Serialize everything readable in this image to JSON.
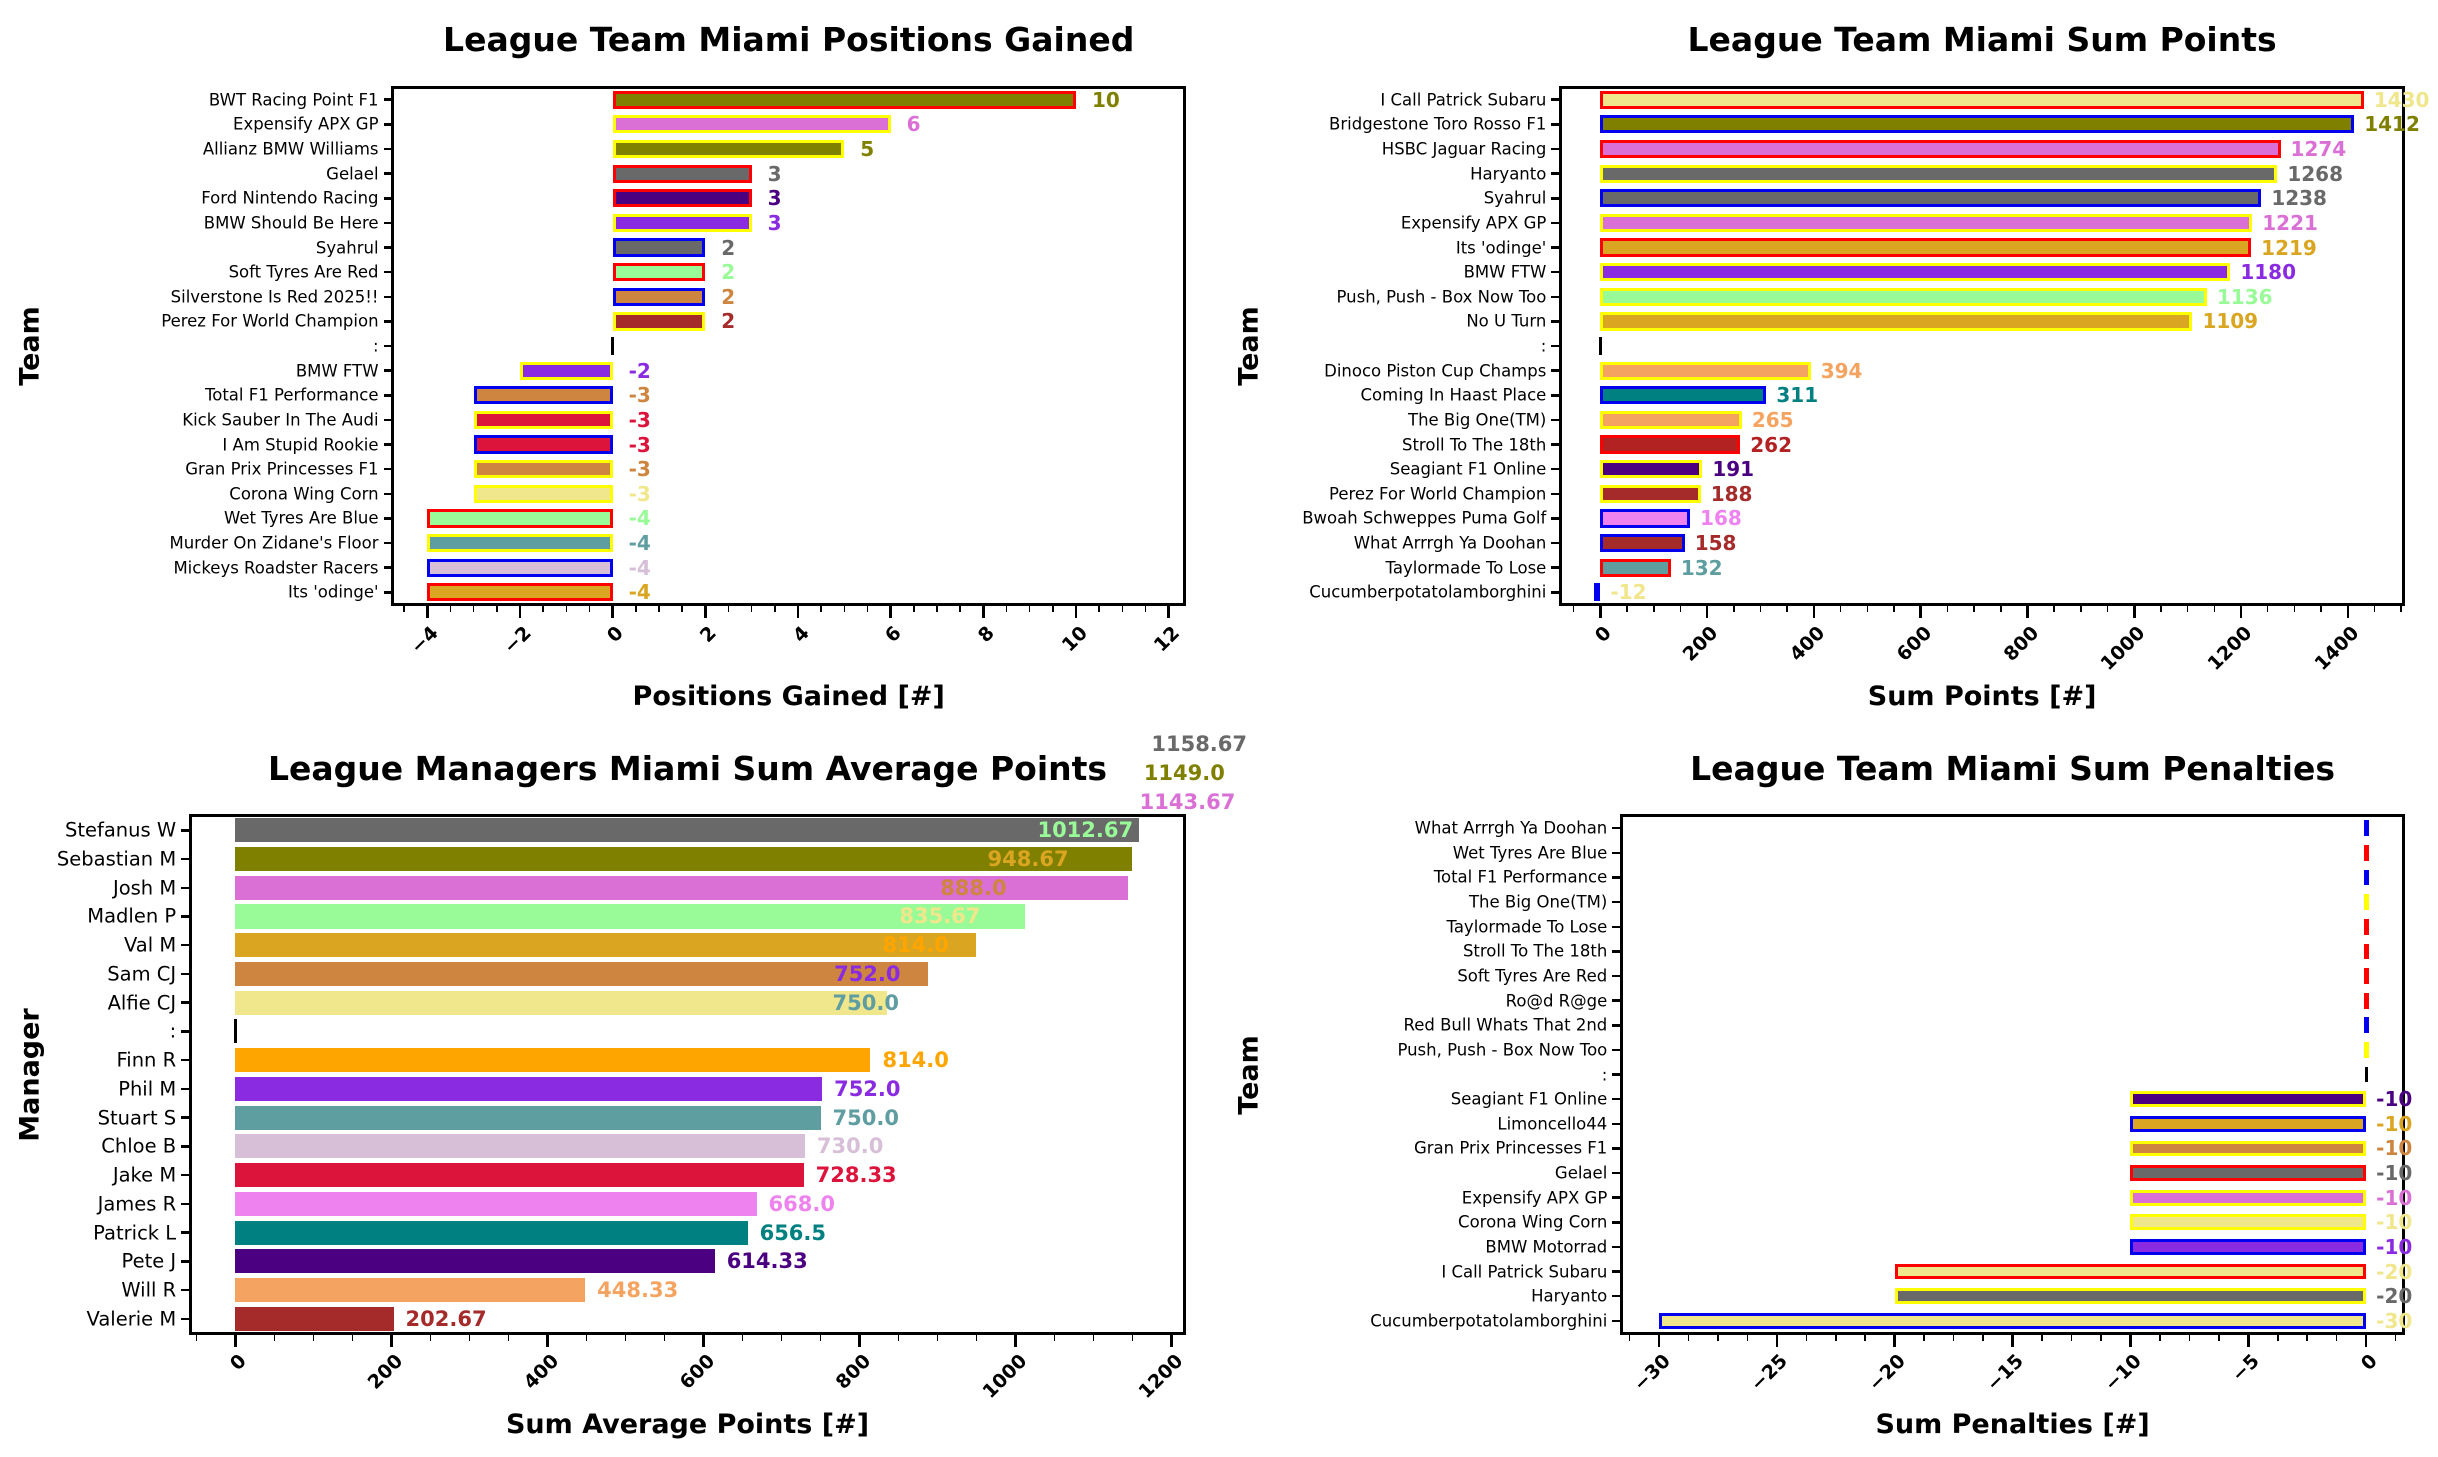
{
  "figure": {
    "background": "#ffffff"
  },
  "chart_data": [
    {
      "type": "bar",
      "orientation": "horizontal",
      "title": "League Team Miami Positions Gained",
      "xlabel": "Positions Gained [#]",
      "ylabel": "Team",
      "xlim": [
        -4.75,
        12.35
      ],
      "xticks": [
        -4,
        -2,
        0,
        2,
        4,
        6,
        8,
        10,
        12
      ],
      "minor_step": 0.5,
      "grid": false,
      "rows": [
        {
          "label": "BWT Racing Point F1",
          "value": 10,
          "fill": "#808000",
          "edge": "#FF0000",
          "vtext": "10",
          "vcolor": "#808000",
          "vx": 10
        },
        {
          "label": "Expensify APX GP",
          "value": 6,
          "fill": "#DA70D6",
          "edge": "#FFFF00",
          "vtext": "6",
          "vcolor": "#DA70D6",
          "vx": 6
        },
        {
          "label": "Allianz BMW Williams",
          "value": 5,
          "fill": "#808000",
          "edge": "#FFFF00",
          "vtext": "5",
          "vcolor": "#808000",
          "vx": 5
        },
        {
          "label": "Gelael",
          "value": 3,
          "fill": "#696969",
          "edge": "#FF0000",
          "vtext": "3",
          "vcolor": "#696969",
          "vx": 3
        },
        {
          "label": "Ford Nintendo Racing",
          "value": 3,
          "fill": "#4B0082",
          "edge": "#FF0000",
          "vtext": "3",
          "vcolor": "#4B0082",
          "vx": 3
        },
        {
          "label": "BMW Should Be Here",
          "value": 3,
          "fill": "#8A2BE2",
          "edge": "#FFFF00",
          "vtext": "3",
          "vcolor": "#8A2BE2",
          "vx": 3
        },
        {
          "label": "Syahrul",
          "value": 2,
          "fill": "#696969",
          "edge": "#0000EE",
          "vtext": "2",
          "vcolor": "#696969",
          "vx": 2
        },
        {
          "label": "Soft Tyres Are Red",
          "value": 2,
          "fill": "#98FB98",
          "edge": "#FF0000",
          "vtext": "2",
          "vcolor": "#98FB98",
          "vx": 2
        },
        {
          "label": "Silverstone Is Red 2025!!",
          "value": 2,
          "fill": "#CD853F",
          "edge": "#0000EE",
          "vtext": "2",
          "vcolor": "#CD853F",
          "vx": 2
        },
        {
          "label": "Perez For World Champion",
          "value": 2,
          "fill": "#A52A2A",
          "edge": "#FFFF00",
          "vtext": "2",
          "vcolor": "#A52A2A",
          "vx": 2
        },
        {
          "label": ":",
          "value": 0,
          "fill": null,
          "edge": null,
          "vtext": "",
          "vcolor": null,
          "vx": 0,
          "separator": true
        },
        {
          "label": "BMW FTW",
          "value": -2,
          "fill": "#8A2BE2",
          "edge": "#FFFF00",
          "vtext": "-2",
          "vcolor": "#8A2BE2",
          "vx": 0
        },
        {
          "label": "Total F1 Performance",
          "value": -3,
          "fill": "#CD853F",
          "edge": "#0000EE",
          "vtext": "-3",
          "vcolor": "#CD853F",
          "vx": 0
        },
        {
          "label": "Kick Sauber In The Audi",
          "value": -3,
          "fill": "#DC143C",
          "edge": "#FFFF00",
          "vtext": "-3",
          "vcolor": "#DC143C",
          "vx": 0
        },
        {
          "label": "I Am Stupid Rookie",
          "value": -3,
          "fill": "#DC143C",
          "edge": "#0000EE",
          "vtext": "-3",
          "vcolor": "#DC143C",
          "vx": 0
        },
        {
          "label": "Gran Prix Princesses F1",
          "value": -3,
          "fill": "#CD853F",
          "edge": "#FFFF00",
          "vtext": "-3",
          "vcolor": "#CD853F",
          "vx": 0
        },
        {
          "label": "Corona Wing Corn",
          "value": -3,
          "fill": "#F0E68C",
          "edge": "#FFFF00",
          "vtext": "-3",
          "vcolor": "#F0E68C",
          "vx": 0
        },
        {
          "label": "Wet Tyres Are Blue",
          "value": -4,
          "fill": "#98FB98",
          "edge": "#FF0000",
          "vtext": "-4",
          "vcolor": "#98FB98",
          "vx": 0
        },
        {
          "label": "Murder On Zidane's Floor",
          "value": -4,
          "fill": "#5F9EA0",
          "edge": "#FFFF00",
          "vtext": "-4",
          "vcolor": "#5F9EA0",
          "vx": 0
        },
        {
          "label": "Mickeys Roadster Racers",
          "value": -4,
          "fill": "#D8BFD8",
          "edge": "#0000EE",
          "vtext": "-4",
          "vcolor": "#D8BFD8",
          "vx": 0
        },
        {
          "label": "Its 'odinge'",
          "value": -4,
          "fill": "#DAA520",
          "edge": "#FF0000",
          "vtext": "-4",
          "vcolor": "#DAA520",
          "vx": 0
        }
      ]
    },
    {
      "type": "bar",
      "orientation": "horizontal",
      "title": "League Team Miami Sum Points",
      "xlabel": "Sum Points [#]",
      "ylabel": "Team",
      "xlim": [
        -75,
        1505
      ],
      "xticks": [
        0,
        200,
        400,
        600,
        800,
        1000,
        1200,
        1400
      ],
      "minor_step": 50,
      "grid": false,
      "rows": [
        {
          "label": "I Call Patrick Subaru",
          "value": 1430,
          "fill": "#F0E68C",
          "edge": "#FF0000",
          "vtext": "1430",
          "vcolor": "#F0E68C",
          "vx": 1430
        },
        {
          "label": "Bridgestone Toro Rosso F1",
          "value": 1412,
          "fill": "#808000",
          "edge": "#0000EE",
          "vtext": "1412",
          "vcolor": "#808000",
          "vx": 1412
        },
        {
          "label": "HSBC Jaguar Racing",
          "value": 1274,
          "fill": "#DA70D6",
          "edge": "#FF0000",
          "vtext": "1274",
          "vcolor": "#DA70D6",
          "vx": 1274
        },
        {
          "label": "Haryanto",
          "value": 1268,
          "fill": "#696969",
          "edge": "#FFFF00",
          "vtext": "1268",
          "vcolor": "#696969",
          "vx": 1268
        },
        {
          "label": "Syahrul",
          "value": 1238,
          "fill": "#696969",
          "edge": "#0000EE",
          "vtext": "1238",
          "vcolor": "#696969",
          "vx": 1238
        },
        {
          "label": "Expensify APX GP",
          "value": 1221,
          "fill": "#DA70D6",
          "edge": "#FFFF00",
          "vtext": "1221",
          "vcolor": "#DA70D6",
          "vx": 1221
        },
        {
          "label": "Its 'odinge'",
          "value": 1219,
          "fill": "#DAA520",
          "edge": "#FF0000",
          "vtext": "1219",
          "vcolor": "#DAA520",
          "vx": 1219
        },
        {
          "label": "BMW FTW",
          "value": 1180,
          "fill": "#8A2BE2",
          "edge": "#FFFF00",
          "vtext": "1180",
          "vcolor": "#8A2BE2",
          "vx": 1180
        },
        {
          "label": "Push, Push - Box Now Too",
          "value": 1136,
          "fill": "#98FB98",
          "edge": "#FFFF00",
          "vtext": "1136",
          "vcolor": "#98FB98",
          "vx": 1136
        },
        {
          "label": "No U Turn",
          "value": 1109,
          "fill": "#DAA520",
          "edge": "#FFFF00",
          "vtext": "1109",
          "vcolor": "#DAA520",
          "vx": 1109
        },
        {
          "label": ":",
          "value": 0,
          "fill": null,
          "edge": null,
          "vtext": "",
          "vcolor": null,
          "vx": 0,
          "separator": true
        },
        {
          "label": "Dinoco Piston Cup Champs",
          "value": 394,
          "fill": "#F4A460",
          "edge": "#FFFF00",
          "vtext": "394",
          "vcolor": "#F4A460",
          "vx": 394
        },
        {
          "label": "Coming In Haast Place",
          "value": 311,
          "fill": "#008080",
          "edge": "#0000EE",
          "vtext": "311",
          "vcolor": "#008080",
          "vx": 311
        },
        {
          "label": "The Big One(TM)",
          "value": 265,
          "fill": "#F4A460",
          "edge": "#FFFF00",
          "vtext": "265",
          "vcolor": "#F4A460",
          "vx": 265
        },
        {
          "label": "Stroll To The 18th",
          "value": 262,
          "fill": "#B22222",
          "edge": "#FF0000",
          "vtext": "262",
          "vcolor": "#B22222",
          "vx": 262
        },
        {
          "label": "Seagiant F1 Online",
          "value": 191,
          "fill": "#4B0082",
          "edge": "#FFFF00",
          "vtext": "191",
          "vcolor": "#4B0082",
          "vx": 191
        },
        {
          "label": "Perez For World Champion",
          "value": 188,
          "fill": "#A52A2A",
          "edge": "#FFFF00",
          "vtext": "188",
          "vcolor": "#A52A2A",
          "vx": 188
        },
        {
          "label": "Bwoah Schweppes Puma Golf",
          "value": 168,
          "fill": "#EE82EE",
          "edge": "#0000EE",
          "vtext": "168",
          "vcolor": "#EE82EE",
          "vx": 168
        },
        {
          "label": "What Arrrgh Ya Doohan",
          "value": 158,
          "fill": "#A52A2A",
          "edge": "#0000EE",
          "vtext": "158",
          "vcolor": "#A52A2A",
          "vx": 158
        },
        {
          "label": "Taylormade To Lose",
          "value": 132,
          "fill": "#5F9EA0",
          "edge": "#FF0000",
          "vtext": "132",
          "vcolor": "#5F9EA0",
          "vx": 132
        },
        {
          "label": "Cucumberpotatolamborghini",
          "value": -12,
          "fill": "#F0E68C",
          "edge": "#0000EE",
          "vtext": "-12",
          "vcolor": "#F0E68C",
          "vx": 0
        }
      ]
    },
    {
      "type": "bar",
      "orientation": "horizontal",
      "title": "League Managers Miami Sum Average Points",
      "xlabel": "Sum Average Points [#]",
      "ylabel": "Manager",
      "xlim": [
        -58,
        1217
      ],
      "xticks": [
        0,
        200,
        400,
        600,
        800,
        1000,
        1200
      ],
      "minor_step": 50,
      "grid": false,
      "rows": [
        {
          "label": "Stefanus W",
          "value": 1158.67,
          "fill": "#696969",
          "edge": null,
          "vtext": "1012.67",
          "vcolor": "#98FB98",
          "vx": 1012.67
        },
        {
          "label": "Sebastian M",
          "value": 1149.0,
          "fill": "#808000",
          "edge": null,
          "vtext": "948.67",
          "vcolor": "#DAA520",
          "vx": 948.67
        },
        {
          "label": "Josh M",
          "value": 1143.67,
          "fill": "#DA70D6",
          "edge": null,
          "vtext": "888.0",
          "vcolor": "#CD853F",
          "vx": 888.0
        },
        {
          "label": "Madlen P",
          "value": 1012.67,
          "fill": "#98FB98",
          "edge": null,
          "vtext": "835.67",
          "vcolor": "#F0E68C",
          "vx": 835.67
        },
        {
          "label": "Val M",
          "value": 948.67,
          "fill": "#DAA520",
          "edge": null,
          "vtext": "814.0",
          "vcolor": "#FFA500",
          "vx": 814.0
        },
        {
          "label": "Sam CJ",
          "value": 888.0,
          "fill": "#CD853F",
          "edge": null,
          "vtext": "752.0",
          "vcolor": "#8A2BE2",
          "vx": 752.0
        },
        {
          "label": "Alfie CJ",
          "value": 835.67,
          "fill": "#F0E68C",
          "edge": null,
          "vtext": "750.0",
          "vcolor": "#5F9EA0",
          "vx": 750.0
        },
        {
          "label": ":",
          "value": 0,
          "fill": null,
          "edge": null,
          "vtext": "",
          "vcolor": null,
          "vx": 0,
          "separator": true
        },
        {
          "label": "Finn R",
          "value": 814.0,
          "fill": "#FFA500",
          "edge": null,
          "vtext": "814.0",
          "vcolor": "#FFA500",
          "vx": 814.0
        },
        {
          "label": "Phil M",
          "value": 752.0,
          "fill": "#8A2BE2",
          "edge": null,
          "vtext": "752.0",
          "vcolor": "#8A2BE2",
          "vx": 752.0
        },
        {
          "label": "Stuart S",
          "value": 750.0,
          "fill": "#5F9EA0",
          "edge": null,
          "vtext": "750.0",
          "vcolor": "#5F9EA0",
          "vx": 750.0
        },
        {
          "label": "Chloe B",
          "value": 730.0,
          "fill": "#D8BFD8",
          "edge": null,
          "vtext": "730.0",
          "vcolor": "#D8BFD8",
          "vx": 730.0
        },
        {
          "label": "Jake M",
          "value": 728.33,
          "fill": "#DC143C",
          "edge": null,
          "vtext": "728.33",
          "vcolor": "#DC143C",
          "vx": 728.33
        },
        {
          "label": "James R",
          "value": 668.0,
          "fill": "#EE82EE",
          "edge": null,
          "vtext": "668.0",
          "vcolor": "#EE82EE",
          "vx": 668.0
        },
        {
          "label": "Patrick L",
          "value": 656.5,
          "fill": "#008080",
          "edge": null,
          "vtext": "656.5",
          "vcolor": "#008080",
          "vx": 656.5
        },
        {
          "label": "Pete J",
          "value": 614.33,
          "fill": "#4B0082",
          "edge": null,
          "vtext": "614.33",
          "vcolor": "#4B0082",
          "vx": 614.33
        },
        {
          "label": "Will R",
          "value": 448.33,
          "fill": "#F4A460",
          "edge": null,
          "vtext": "448.33",
          "vcolor": "#F4A460",
          "vx": 448.33
        },
        {
          "label": "Valerie M",
          "value": 202.67,
          "fill": "#A52A2A",
          "edge": null,
          "vtext": "202.67",
          "vcolor": "#A52A2A",
          "vx": 202.67
        }
      ],
      "floating_labels": [
        {
          "text": "1158.67",
          "color": "#696969",
          "row": -3,
          "vx": 1158.67
        },
        {
          "text": "1149.0",
          "color": "#808000",
          "row": -2,
          "vx": 1149.0
        },
        {
          "text": "1143.67",
          "color": "#DA70D6",
          "row": -1,
          "vx": 1143.67
        }
      ]
    },
    {
      "type": "bar",
      "orientation": "horizontal",
      "title": "League Team Miami Sum Penalties",
      "xlabel": "Sum Penalties [#]",
      "ylabel": "Team",
      "xlim": [
        -31.6,
        1.6
      ],
      "xticks": [
        -30,
        -25,
        -20,
        -15,
        -10,
        -5,
        0
      ],
      "minor_step": 1.25,
      "grid": false,
      "rows": [
        {
          "label": "What Arrrgh Ya Doohan",
          "value": 0,
          "fill": null,
          "edge": "#0000EE",
          "vtext": "",
          "vcolor": null,
          "vx": 0
        },
        {
          "label": "Wet Tyres Are Blue",
          "value": 0,
          "fill": null,
          "edge": "#FF0000",
          "vtext": "",
          "vcolor": null,
          "vx": 0
        },
        {
          "label": "Total F1 Performance",
          "value": 0,
          "fill": null,
          "edge": "#0000EE",
          "vtext": "",
          "vcolor": null,
          "vx": 0
        },
        {
          "label": "The Big One(TM)",
          "value": 0,
          "fill": null,
          "edge": "#FFFF00",
          "vtext": "",
          "vcolor": null,
          "vx": 0
        },
        {
          "label": "Taylormade To Lose",
          "value": 0,
          "fill": null,
          "edge": "#FF0000",
          "vtext": "",
          "vcolor": null,
          "vx": 0
        },
        {
          "label": "Stroll To The 18th",
          "value": 0,
          "fill": null,
          "edge": "#FF0000",
          "vtext": "",
          "vcolor": null,
          "vx": 0
        },
        {
          "label": "Soft Tyres Are Red",
          "value": 0,
          "fill": null,
          "edge": "#FF0000",
          "vtext": "",
          "vcolor": null,
          "vx": 0
        },
        {
          "label": "Ro@d R@ge",
          "value": 0,
          "fill": null,
          "edge": "#FF0000",
          "vtext": "",
          "vcolor": null,
          "vx": 0
        },
        {
          "label": "Red Bull Whats That 2nd",
          "value": 0,
          "fill": null,
          "edge": "#0000EE",
          "vtext": "",
          "vcolor": null,
          "vx": 0
        },
        {
          "label": "Push, Push - Box Now Too",
          "value": 0,
          "fill": null,
          "edge": "#FFFF00",
          "vtext": "",
          "vcolor": null,
          "vx": 0
        },
        {
          "label": ":",
          "value": 0,
          "fill": null,
          "edge": null,
          "vtext": "",
          "vcolor": null,
          "vx": 0,
          "separator": true
        },
        {
          "label": "Seagiant F1 Online",
          "value": -10,
          "fill": "#4B0082",
          "edge": "#FFFF00",
          "vtext": "-10",
          "vcolor": "#4B0082",
          "vx": 0
        },
        {
          "label": "Limoncello44",
          "value": -10,
          "fill": "#DAA520",
          "edge": "#0000EE",
          "vtext": "-10",
          "vcolor": "#DAA520",
          "vx": 0
        },
        {
          "label": "Gran Prix Princesses F1",
          "value": -10,
          "fill": "#CD853F",
          "edge": "#FFFF00",
          "vtext": "-10",
          "vcolor": "#CD853F",
          "vx": 0
        },
        {
          "label": "Gelael",
          "value": -10,
          "fill": "#696969",
          "edge": "#FF0000",
          "vtext": "-10",
          "vcolor": "#696969",
          "vx": 0
        },
        {
          "label": "Expensify APX GP",
          "value": -10,
          "fill": "#DA70D6",
          "edge": "#FFFF00",
          "vtext": "-10",
          "vcolor": "#DA70D6",
          "vx": 0
        },
        {
          "label": "Corona Wing Corn",
          "value": -10,
          "fill": "#F0E68C",
          "edge": "#FFFF00",
          "vtext": "-10",
          "vcolor": "#F0E68C",
          "vx": 0
        },
        {
          "label": "BMW Motorrad",
          "value": -10,
          "fill": "#8A2BE2",
          "edge": "#0000EE",
          "vtext": "-10",
          "vcolor": "#8A2BE2",
          "vx": 0
        },
        {
          "label": "I Call Patrick Subaru",
          "value": -20,
          "fill": "#F0E68C",
          "edge": "#FF0000",
          "vtext": "-20",
          "vcolor": "#F0E68C",
          "vx": 0
        },
        {
          "label": "Haryanto",
          "value": -20,
          "fill": "#696969",
          "edge": "#FFFF00",
          "vtext": "-20",
          "vcolor": "#696969",
          "vx": 0
        },
        {
          "label": "Cucumberpotatolamborghini",
          "value": -30,
          "fill": "#F0E68C",
          "edge": "#0000EE",
          "vtext": "-30",
          "vcolor": "#F0E68C",
          "vx": 0
        }
      ]
    }
  ]
}
